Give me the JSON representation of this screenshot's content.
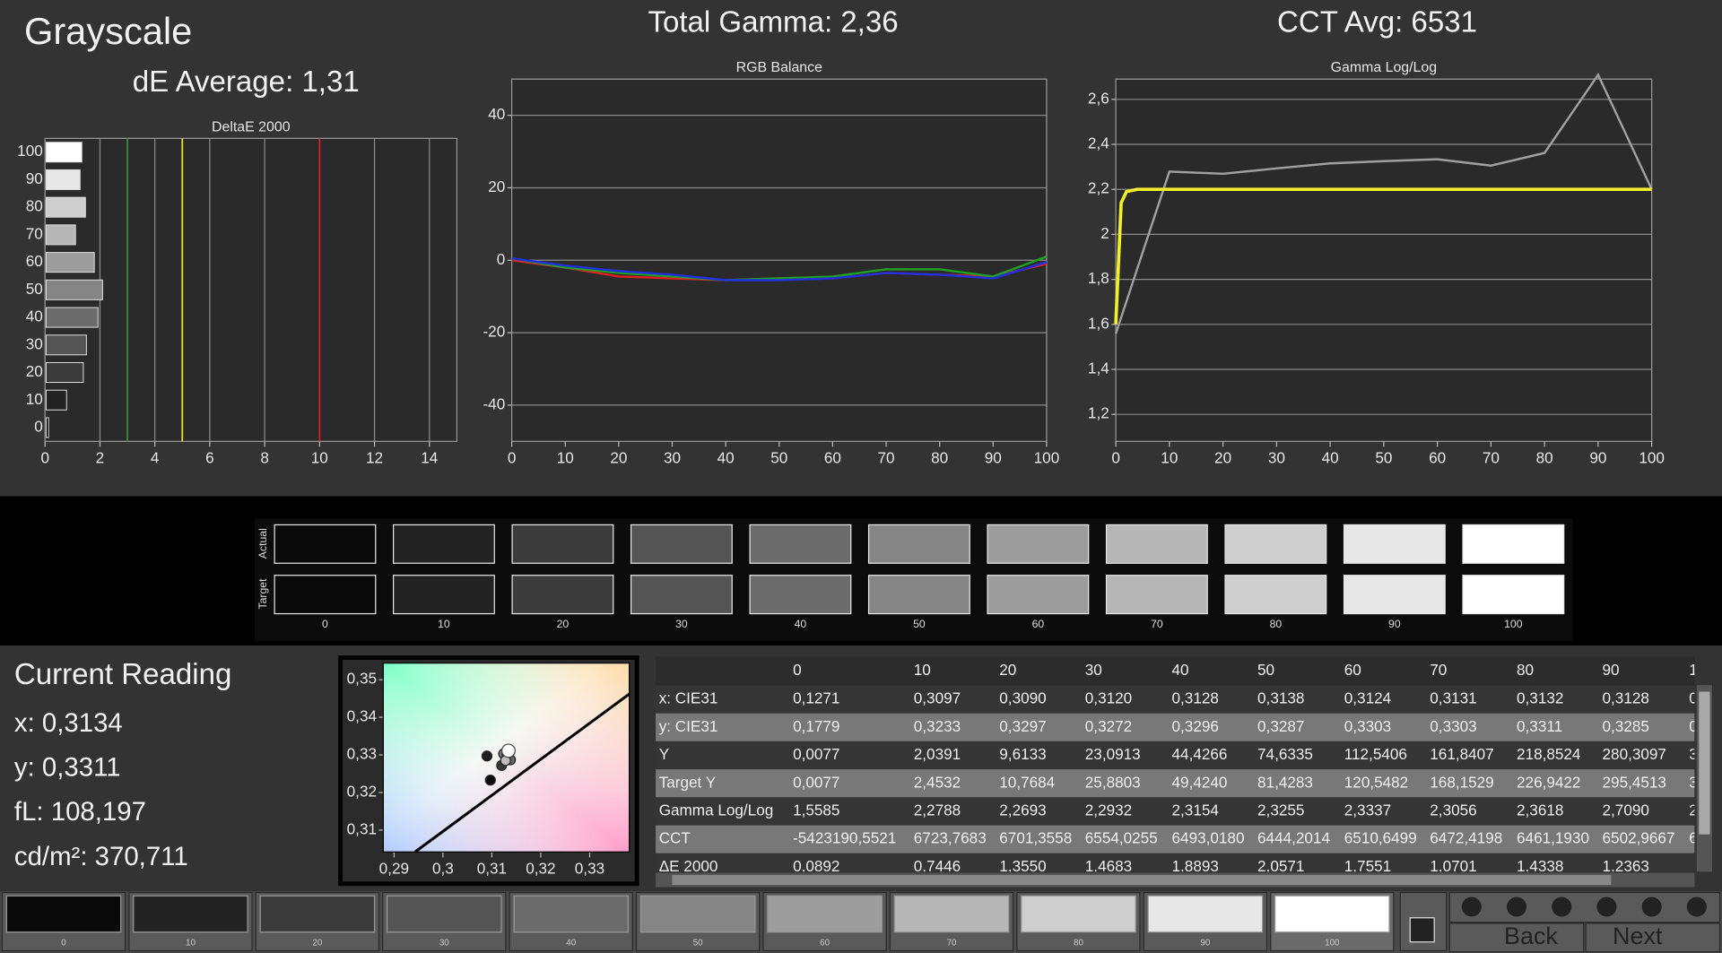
{
  "header": {
    "title": "Grayscale",
    "de_average": "dE Average: 1,31",
    "total_gamma": "Total Gamma: 2,36",
    "cct_avg": "CCT Avg: 6531"
  },
  "chart_data": [
    {
      "type": "bar",
      "orientation": "horizontal",
      "title": "DeltaE 2000",
      "categories": [
        "0",
        "10",
        "20",
        "30",
        "40",
        "50",
        "60",
        "70",
        "80",
        "90",
        "100"
      ],
      "values": [
        0.0892,
        0.7446,
        1.355,
        1.4683,
        1.8893,
        2.0571,
        1.7551,
        1.0701,
        1.4338,
        1.2363,
        1.3
      ],
      "xlim": [
        0,
        15
      ],
      "xticks": [
        0,
        2,
        4,
        6,
        8,
        10,
        12,
        14
      ],
      "grid": true,
      "reference_lines": [
        {
          "value": 3,
          "color": "#2f8f3a"
        },
        {
          "value": 5,
          "color": "#e6df2e"
        },
        {
          "value": 10,
          "color": "#d62222"
        }
      ]
    },
    {
      "type": "line",
      "title": "RGB Balance",
      "x": [
        0,
        10,
        20,
        30,
        40,
        50,
        60,
        70,
        80,
        90,
        100
      ],
      "series": [
        {
          "color": "#e02020",
          "values": [
            0,
            -2,
            -4.5,
            -5,
            -5.5,
            -5,
            -5,
            -3.5,
            -4,
            -4.5,
            -1
          ]
        },
        {
          "color": "#20a020",
          "values": [
            0.5,
            -2,
            -3.5,
            -4.5,
            -5.5,
            -5,
            -4.5,
            -2.5,
            -2.5,
            -4.5,
            1
          ]
        },
        {
          "color": "#2030e0",
          "values": [
            0.5,
            -1.5,
            -3,
            -4,
            -5.5,
            -5.5,
            -5,
            -3.5,
            -4,
            -5,
            -0.5
          ]
        }
      ],
      "xlim": [
        0,
        100
      ],
      "xticks": [
        0,
        10,
        20,
        30,
        40,
        50,
        60,
        70,
        80,
        90,
        100
      ],
      "ylim": [
        -50,
        50
      ],
      "yticks": [
        -40,
        -20,
        0,
        20,
        40
      ],
      "grid": true
    },
    {
      "type": "line",
      "title": "Gamma Log/Log",
      "series": [
        {
          "color": "#a0a0a0",
          "x": [
            0,
            10,
            20,
            30,
            40,
            50,
            60,
            70,
            80,
            90,
            100
          ],
          "values": [
            1.5585,
            2.2788,
            2.2693,
            2.2932,
            2.3154,
            2.3255,
            2.3337,
            2.3056,
            2.3618,
            2.709,
            2.2
          ]
        },
        {
          "color": "#f2ee2a",
          "x": [
            0,
            1,
            2,
            4,
            100
          ],
          "values": [
            1.6,
            2.14,
            2.19,
            2.2,
            2.2
          ]
        }
      ],
      "xlim": [
        0,
        100
      ],
      "xticks": [
        0,
        10,
        20,
        30,
        40,
        50,
        60,
        70,
        80,
        90,
        100
      ],
      "ylim": [
        1.08,
        2.69
      ],
      "yticks": [
        {
          "value": 1.2,
          "label": "1,2"
        },
        {
          "value": 1.4,
          "label": "1,4"
        },
        {
          "value": 1.6,
          "label": "1,6"
        },
        {
          "value": 1.8,
          "label": "1,8"
        },
        2,
        {
          "value": 2.2,
          "label": "2,2"
        },
        {
          "value": 2.4,
          "label": "2,4"
        },
        {
          "value": 2.6,
          "label": "2,6"
        }
      ],
      "grid": true
    },
    {
      "type": "scatter",
      "x": [
        0.3097,
        0.309,
        0.312,
        0.3128,
        0.3138,
        0.3124,
        0.3131,
        0.3132,
        0.3128,
        0.3134
      ],
      "values": [
        0.3233,
        0.3297,
        0.3272,
        0.3296,
        0.3287,
        0.3303,
        0.3303,
        0.3311,
        0.3285,
        0.3311
      ],
      "locus": {
        "x": [
          0.2943,
          0.3381
        ],
        "y": [
          0.3042,
          0.3462
        ]
      },
      "xlim": [
        0.2878,
        0.3381
      ],
      "ylim": [
        0.3042,
        0.3544
      ],
      "xticks": [
        {
          "value": 0.29,
          "label": "0,29"
        },
        {
          "value": 0.3,
          "label": "0,3"
        },
        {
          "value": 0.31,
          "label": "0,31"
        },
        {
          "value": 0.32,
          "label": "0,32"
        },
        {
          "value": 0.33,
          "label": "0,33"
        }
      ],
      "yticks": [
        {
          "value": 0.31,
          "label": "0,31"
        },
        {
          "value": 0.32,
          "label": "0,32"
        },
        {
          "value": 0.33,
          "label": "0,33"
        },
        {
          "value": 0.34,
          "label": "0,34"
        },
        {
          "value": 0.35,
          "label": "0,35"
        }
      ],
      "grid": false
    }
  ],
  "swatches": {
    "row_labels": [
      "Actual",
      "Target"
    ],
    "levels": [
      "0",
      "10",
      "20",
      "30",
      "40",
      "50",
      "60",
      "70",
      "80",
      "90",
      "100"
    ]
  },
  "current_reading": {
    "title": "Current Reading",
    "lines": [
      "x: 0,3134",
      "y: 0,3311",
      "fL: 108,197",
      "cd/m²: 370,711"
    ]
  },
  "table": {
    "header": [
      "0",
      "10",
      "20",
      "30",
      "40",
      "50",
      "60",
      "70",
      "80",
      "90",
      "1"
    ],
    "rows": [
      [
        "x: CIE31",
        "0,1271",
        "0,3097",
        "0,3090",
        "0,3120",
        "0,3128",
        "0,3138",
        "0,3124",
        "0,3131",
        "0,3132",
        "0,3128",
        "0"
      ],
      [
        "y: CIE31",
        "0,1779",
        "0,3233",
        "0,3297",
        "0,3272",
        "0,3296",
        "0,3287",
        "0,3303",
        "0,3303",
        "0,3311",
        "0,3285",
        "0"
      ],
      [
        "Y",
        "0,0077",
        "2,0391",
        "9,6133",
        "23,0913",
        "44,4266",
        "74,6335",
        "112,5406",
        "161,8407",
        "218,8524",
        "280,3097",
        "3"
      ],
      [
        "Target Y",
        "0,0077",
        "2,4532",
        "10,7684",
        "25,8803",
        "49,4240",
        "81,4283",
        "120,5482",
        "168,1529",
        "226,9422",
        "295,4513",
        "3"
      ],
      [
        "Gamma Log/Log",
        "1,5585",
        "2,2788",
        "2,2693",
        "2,2932",
        "2,3154",
        "2,3255",
        "2,3337",
        "2,3056",
        "2,3618",
        "2,7090",
        "2"
      ],
      [
        "CCT",
        "-5423190,5521",
        "6723,7683",
        "6701,3558",
        "6554,0255",
        "6493,0180",
        "6444,2014",
        "6510,6499",
        "6472,4198",
        "6461,1930",
        "6502,9667",
        "6"
      ],
      [
        "ΔE 2000",
        "0,0892",
        "0,7446",
        "1,3550",
        "1,4683",
        "1,8893",
        "2,0571",
        "1,7551",
        "1,0701",
        "1,4338",
        "1,2363"
      ]
    ]
  },
  "toolbar": {
    "swatch_labels": [
      "0",
      "10",
      "20",
      "30",
      "40",
      "50",
      "60",
      "70",
      "80",
      "90",
      "100"
    ],
    "back": "Back",
    "next": "Next"
  }
}
